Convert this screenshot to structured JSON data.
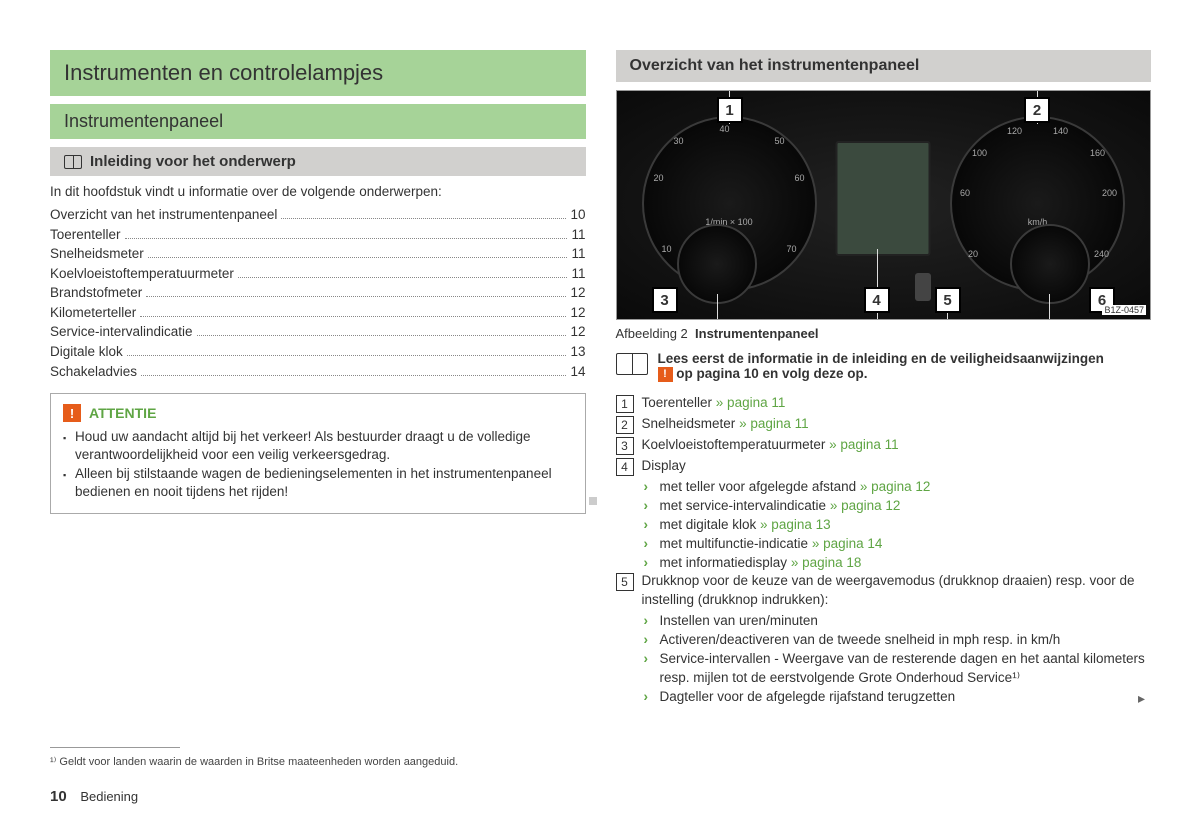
{
  "left": {
    "h1": "Instrumenten en controlelampjes",
    "h2": "Instrumentenpaneel",
    "h3": "Inleiding voor het onderwerp",
    "intro": "In dit hoofdstuk vindt u informatie over de volgende onderwerpen:",
    "toc": [
      {
        "label": "Overzicht van het instrumentenpaneel",
        "page": "10"
      },
      {
        "label": "Toerenteller",
        "page": "11"
      },
      {
        "label": "Snelheidsmeter",
        "page": "11"
      },
      {
        "label": "Koelvloeistoftemperatuurmeter",
        "page": "11"
      },
      {
        "label": "Brandstofmeter",
        "page": "12"
      },
      {
        "label": "Kilometerteller",
        "page": "12"
      },
      {
        "label": "Service-intervalindicatie",
        "page": "12"
      },
      {
        "label": "Digitale klok",
        "page": "13"
      },
      {
        "label": "Schakeladvies",
        "page": "14"
      }
    ],
    "warn_title": "ATTENTIE",
    "warn_items": [
      "Houd uw aandacht altijd bij het verkeer! Als bestuurder draagt u de volledige verantwoordelijkheid voor een veilig verkeersgedrag.",
      "Alleen bij stilstaande wagen de bedieningselementen in het instrumentenpaneel bedienen en nooit tijdens het rijden!"
    ]
  },
  "right": {
    "h3": "Overzicht van het instrumentenpaneel",
    "caption_prefix": "Afbeelding 2",
    "caption_bold": "Instrumentenpaneel",
    "img_code": "B1Z-0457",
    "read_first_line1": "Lees eerst de informatie in de inleiding en de veiligheidsaanwijzingen",
    "read_first_line2": "op pagina 10 en volg deze op.",
    "legend": [
      {
        "n": "1",
        "text": "Toerenteller ",
        "link": "» pagina 11"
      },
      {
        "n": "2",
        "text": "Snelheidsmeter ",
        "link": "» pagina 11"
      },
      {
        "n": "3",
        "text": "Koelvloeistoftemperatuurmeter ",
        "link": "» pagina 11"
      },
      {
        "n": "4",
        "text": "Display",
        "link": ""
      },
      {
        "n": "5",
        "text": "Drukknop voor de keuze van de weergavemodus (drukknop draaien) resp. voor de instelling (drukknop indrukken):",
        "link": ""
      }
    ],
    "display_subs": [
      {
        "text": "met teller voor afgelegde afstand ",
        "link": "» pagina 12"
      },
      {
        "text": "met service-intervalindicatie ",
        "link": "» pagina 12"
      },
      {
        "text": "met digitale klok ",
        "link": "» pagina 13"
      },
      {
        "text": "met multifunctie-indicatie ",
        "link": "» pagina 14"
      },
      {
        "text": "met informatiedisplay ",
        "link": "» pagina 18"
      }
    ],
    "knob_subs": [
      "Instellen van uren/minuten",
      "Activeren/deactiveren van de tweede snelheid in mph resp. in km/h",
      "Service-intervallen - Weergave van de resterende dagen en het aantal kilometers resp. mijlen tot de eerstvolgende Grote Onderhoud Service¹⁾",
      "Dagteller voor de afgelegde rijafstand terugzetten"
    ]
  },
  "footnote": "¹⁾  Geldt voor landen waarin de waarden in Britse maateenheden worden aangeduid.",
  "footer_page": "10",
  "footer_section": "Bediening",
  "gauge_left_nums": [
    "10",
    "20",
    "30",
    "40",
    "50",
    "60",
    "70"
  ],
  "gauge_left_unit": "1/min × 100",
  "gauge_right_nums": [
    "20",
    "40",
    "60",
    "80",
    "100",
    "120",
    "140",
    "160",
    "180",
    "200",
    "220",
    "240"
  ],
  "gauge_right_unit": "km/h"
}
